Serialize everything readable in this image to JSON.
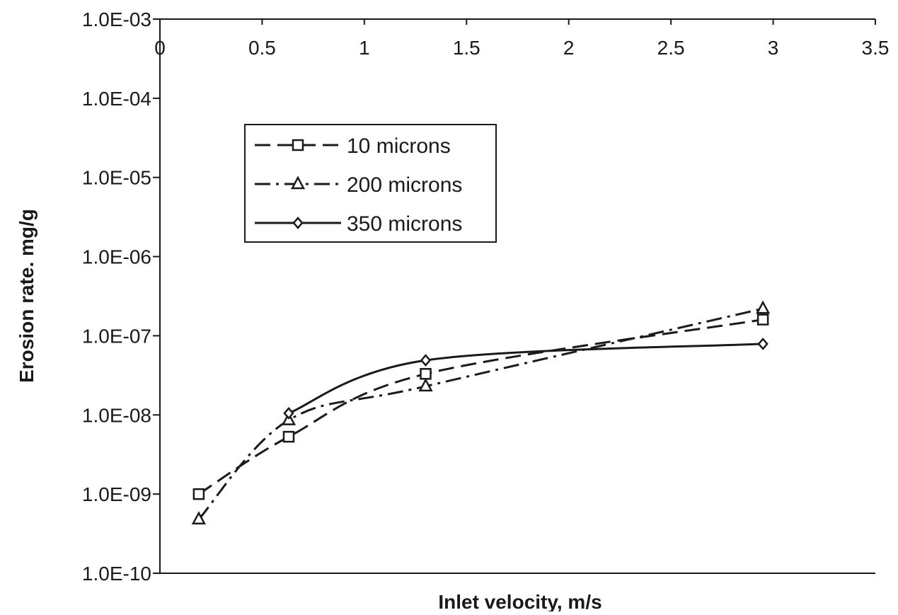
{
  "chart_data": {
    "type": "line",
    "title": "",
    "xlabel": "Inlet velocity, m/s",
    "ylabel": "Erosion rate. mg/g",
    "xlim": [
      0,
      3.5
    ],
    "ylim": [
      1e-10,
      0.001
    ],
    "y_scale": "log",
    "x_axis_position": "top",
    "grid": false,
    "legend_position": "upper-left",
    "x_ticks": [
      0,
      0.5,
      1,
      1.5,
      2,
      2.5,
      3,
      3.5
    ],
    "x_tick_labels": [
      "0",
      "0.5",
      "1",
      "1.5",
      "2",
      "2.5",
      "3",
      "3.5"
    ],
    "y_ticks": [
      1e-10,
      1e-09,
      1e-08,
      1e-07,
      1e-06,
      1e-05,
      0.0001,
      0.001
    ],
    "y_tick_labels": [
      "1.0E-10",
      "1.0E-09",
      "1.0E-08",
      "1.0E-07",
      "1.0E-06",
      "1.0E-05",
      "1.0E-04",
      "1.0E-03"
    ],
    "series": [
      {
        "name": "10 microns",
        "marker": "square",
        "line_style": "dashed",
        "color": "#1a1a1a",
        "x": [
          0.19,
          0.63,
          1.3,
          2.95
        ],
        "y": [
          1e-09,
          5.3e-09,
          3.3e-08,
          1.6e-07
        ]
      },
      {
        "name": "200 microns",
        "marker": "triangle",
        "line_style": "dash-dot",
        "color": "#1a1a1a",
        "x": [
          0.19,
          0.63,
          1.3,
          2.95
        ],
        "y": [
          4.8e-10,
          8.6e-09,
          2.3e-08,
          2.2e-07
        ]
      },
      {
        "name": "350 microns",
        "marker": "diamond",
        "line_style": "solid",
        "color": "#1a1a1a",
        "x": [
          0.63,
          1.3,
          2.95
        ],
        "y": [
          1.05e-08,
          4.9e-08,
          7.9e-08
        ]
      }
    ]
  }
}
